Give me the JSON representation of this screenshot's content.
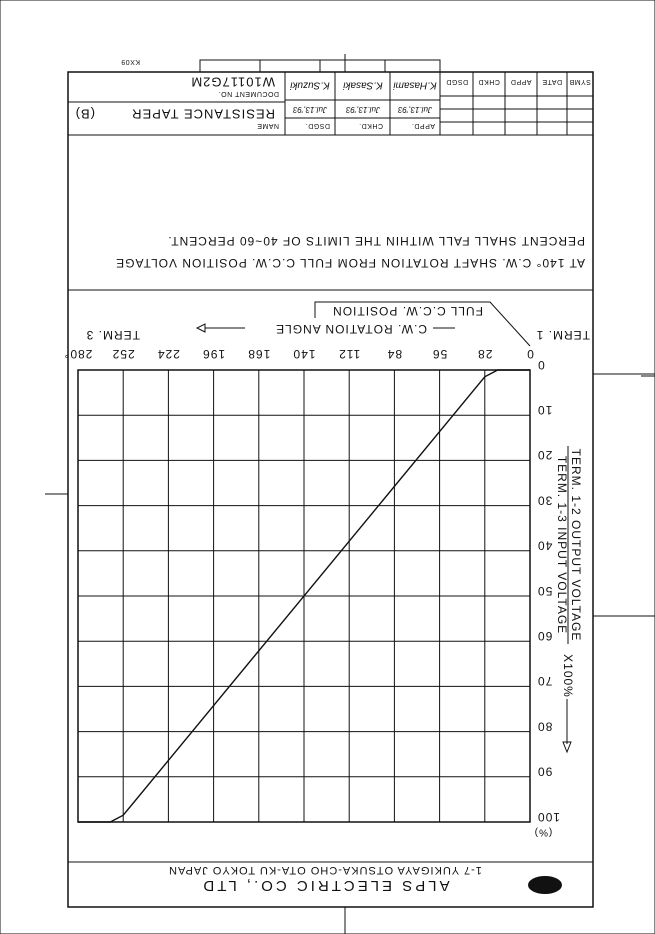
{
  "title_block": {
    "revision_headers": [
      "SYMB",
      "DATE",
      "APPD",
      "CHKD",
      "DSGD"
    ],
    "approvals": [
      {
        "role": "APPD.",
        "name": "K.Hasami",
        "date": "Jul.13,'93"
      },
      {
        "role": "CHKD.",
        "name": "K.Sasaki",
        "date": "Jul.13,'93"
      },
      {
        "role": "DSGD.",
        "name": "K.Suzuki",
        "date": "Jul.13,'93"
      }
    ],
    "name_label": "NAME",
    "name": "RESISTANCE TAPER",
    "grade": "(B)",
    "document_label": "DOCUMENT NO.",
    "document_no": "W10117G2M",
    "sheet_code": "KX09"
  },
  "note": [
    "AT 140° C.W. SHAFT ROTATION FROM FULL C.C.W. POSITION VOLTAGE",
    "PERCENT SHALL FALL WITHIN THE LIMITS OF 40~60 PERCENT."
  ],
  "chart_data": {
    "type": "line",
    "annotation": "FULL C.C.W. POSITION",
    "term_left": "TERM. 1",
    "term_right": "TERM. 3",
    "x_label": "C.W. ROTATION ANGLE",
    "y_label_numerator": "TERM. 1-2 OUTPUT VOLTAGE",
    "y_label_denominator": "TERM. 1-3 INPUT VOLTAGE",
    "y_unit": "X100%",
    "y_unit_label": "(%)",
    "x": [
      0,
      20,
      28,
      252,
      260,
      280
    ],
    "values": [
      0,
      0,
      1.5,
      98.5,
      100,
      100
    ],
    "color": "#111111",
    "xlim": [
      0,
      280
    ],
    "xticks": [
      0,
      28,
      56,
      84,
      112,
      140,
      168,
      196,
      224,
      252,
      {
        "value": 280,
        "label": "280°"
      }
    ],
    "ylim": [
      0,
      100
    ],
    "yticks": [
      0,
      10,
      20,
      30,
      40,
      50,
      60,
      70,
      80,
      90,
      100
    ],
    "grid": true
  },
  "company": {
    "name": "ALPS ELECTRIC CO., LTD",
    "address": "1-7 YUKIGAYA OTSUKA-CHO OTA-KU TOKYO JAPAN"
  }
}
